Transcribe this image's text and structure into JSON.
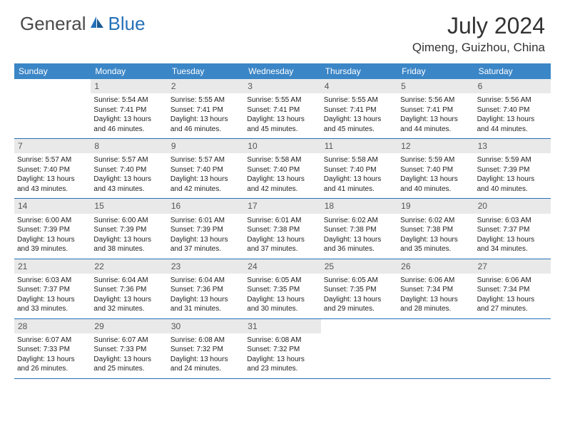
{
  "brand": {
    "name1": "General",
    "name2": "Blue"
  },
  "title": {
    "month": "July 2024",
    "location": "Qimeng, Guizhou, China"
  },
  "colors": {
    "header_bg": "#3b86c7",
    "accent": "#2571b8",
    "daynum_bg": "#e9e9e9",
    "text": "#222222",
    "logo_gray": "#4a4a4a"
  },
  "weekdays": [
    "Sunday",
    "Monday",
    "Tuesday",
    "Wednesday",
    "Thursday",
    "Friday",
    "Saturday"
  ],
  "weeks": [
    [
      {
        "n": "",
        "sunrise": "",
        "sunset": "",
        "daylight": ""
      },
      {
        "n": "1",
        "sunrise": "Sunrise: 5:54 AM",
        "sunset": "Sunset: 7:41 PM",
        "daylight": "Daylight: 13 hours and 46 minutes."
      },
      {
        "n": "2",
        "sunrise": "Sunrise: 5:55 AM",
        "sunset": "Sunset: 7:41 PM",
        "daylight": "Daylight: 13 hours and 46 minutes."
      },
      {
        "n": "3",
        "sunrise": "Sunrise: 5:55 AM",
        "sunset": "Sunset: 7:41 PM",
        "daylight": "Daylight: 13 hours and 45 minutes."
      },
      {
        "n": "4",
        "sunrise": "Sunrise: 5:55 AM",
        "sunset": "Sunset: 7:41 PM",
        "daylight": "Daylight: 13 hours and 45 minutes."
      },
      {
        "n": "5",
        "sunrise": "Sunrise: 5:56 AM",
        "sunset": "Sunset: 7:41 PM",
        "daylight": "Daylight: 13 hours and 44 minutes."
      },
      {
        "n": "6",
        "sunrise": "Sunrise: 5:56 AM",
        "sunset": "Sunset: 7:40 PM",
        "daylight": "Daylight: 13 hours and 44 minutes."
      }
    ],
    [
      {
        "n": "7",
        "sunrise": "Sunrise: 5:57 AM",
        "sunset": "Sunset: 7:40 PM",
        "daylight": "Daylight: 13 hours and 43 minutes."
      },
      {
        "n": "8",
        "sunrise": "Sunrise: 5:57 AM",
        "sunset": "Sunset: 7:40 PM",
        "daylight": "Daylight: 13 hours and 43 minutes."
      },
      {
        "n": "9",
        "sunrise": "Sunrise: 5:57 AM",
        "sunset": "Sunset: 7:40 PM",
        "daylight": "Daylight: 13 hours and 42 minutes."
      },
      {
        "n": "10",
        "sunrise": "Sunrise: 5:58 AM",
        "sunset": "Sunset: 7:40 PM",
        "daylight": "Daylight: 13 hours and 42 minutes."
      },
      {
        "n": "11",
        "sunrise": "Sunrise: 5:58 AM",
        "sunset": "Sunset: 7:40 PM",
        "daylight": "Daylight: 13 hours and 41 minutes."
      },
      {
        "n": "12",
        "sunrise": "Sunrise: 5:59 AM",
        "sunset": "Sunset: 7:40 PM",
        "daylight": "Daylight: 13 hours and 40 minutes."
      },
      {
        "n": "13",
        "sunrise": "Sunrise: 5:59 AM",
        "sunset": "Sunset: 7:39 PM",
        "daylight": "Daylight: 13 hours and 40 minutes."
      }
    ],
    [
      {
        "n": "14",
        "sunrise": "Sunrise: 6:00 AM",
        "sunset": "Sunset: 7:39 PM",
        "daylight": "Daylight: 13 hours and 39 minutes."
      },
      {
        "n": "15",
        "sunrise": "Sunrise: 6:00 AM",
        "sunset": "Sunset: 7:39 PM",
        "daylight": "Daylight: 13 hours and 38 minutes."
      },
      {
        "n": "16",
        "sunrise": "Sunrise: 6:01 AM",
        "sunset": "Sunset: 7:39 PM",
        "daylight": "Daylight: 13 hours and 37 minutes."
      },
      {
        "n": "17",
        "sunrise": "Sunrise: 6:01 AM",
        "sunset": "Sunset: 7:38 PM",
        "daylight": "Daylight: 13 hours and 37 minutes."
      },
      {
        "n": "18",
        "sunrise": "Sunrise: 6:02 AM",
        "sunset": "Sunset: 7:38 PM",
        "daylight": "Daylight: 13 hours and 36 minutes."
      },
      {
        "n": "19",
        "sunrise": "Sunrise: 6:02 AM",
        "sunset": "Sunset: 7:38 PM",
        "daylight": "Daylight: 13 hours and 35 minutes."
      },
      {
        "n": "20",
        "sunrise": "Sunrise: 6:03 AM",
        "sunset": "Sunset: 7:37 PM",
        "daylight": "Daylight: 13 hours and 34 minutes."
      }
    ],
    [
      {
        "n": "21",
        "sunrise": "Sunrise: 6:03 AM",
        "sunset": "Sunset: 7:37 PM",
        "daylight": "Daylight: 13 hours and 33 minutes."
      },
      {
        "n": "22",
        "sunrise": "Sunrise: 6:04 AM",
        "sunset": "Sunset: 7:36 PM",
        "daylight": "Daylight: 13 hours and 32 minutes."
      },
      {
        "n": "23",
        "sunrise": "Sunrise: 6:04 AM",
        "sunset": "Sunset: 7:36 PM",
        "daylight": "Daylight: 13 hours and 31 minutes."
      },
      {
        "n": "24",
        "sunrise": "Sunrise: 6:05 AM",
        "sunset": "Sunset: 7:35 PM",
        "daylight": "Daylight: 13 hours and 30 minutes."
      },
      {
        "n": "25",
        "sunrise": "Sunrise: 6:05 AM",
        "sunset": "Sunset: 7:35 PM",
        "daylight": "Daylight: 13 hours and 29 minutes."
      },
      {
        "n": "26",
        "sunrise": "Sunrise: 6:06 AM",
        "sunset": "Sunset: 7:34 PM",
        "daylight": "Daylight: 13 hours and 28 minutes."
      },
      {
        "n": "27",
        "sunrise": "Sunrise: 6:06 AM",
        "sunset": "Sunset: 7:34 PM",
        "daylight": "Daylight: 13 hours and 27 minutes."
      }
    ],
    [
      {
        "n": "28",
        "sunrise": "Sunrise: 6:07 AM",
        "sunset": "Sunset: 7:33 PM",
        "daylight": "Daylight: 13 hours and 26 minutes."
      },
      {
        "n": "29",
        "sunrise": "Sunrise: 6:07 AM",
        "sunset": "Sunset: 7:33 PM",
        "daylight": "Daylight: 13 hours and 25 minutes."
      },
      {
        "n": "30",
        "sunrise": "Sunrise: 6:08 AM",
        "sunset": "Sunset: 7:32 PM",
        "daylight": "Daylight: 13 hours and 24 minutes."
      },
      {
        "n": "31",
        "sunrise": "Sunrise: 6:08 AM",
        "sunset": "Sunset: 7:32 PM",
        "daylight": "Daylight: 13 hours and 23 minutes."
      },
      {
        "n": "",
        "sunrise": "",
        "sunset": "",
        "daylight": ""
      },
      {
        "n": "",
        "sunrise": "",
        "sunset": "",
        "daylight": ""
      },
      {
        "n": "",
        "sunrise": "",
        "sunset": "",
        "daylight": ""
      }
    ]
  ]
}
